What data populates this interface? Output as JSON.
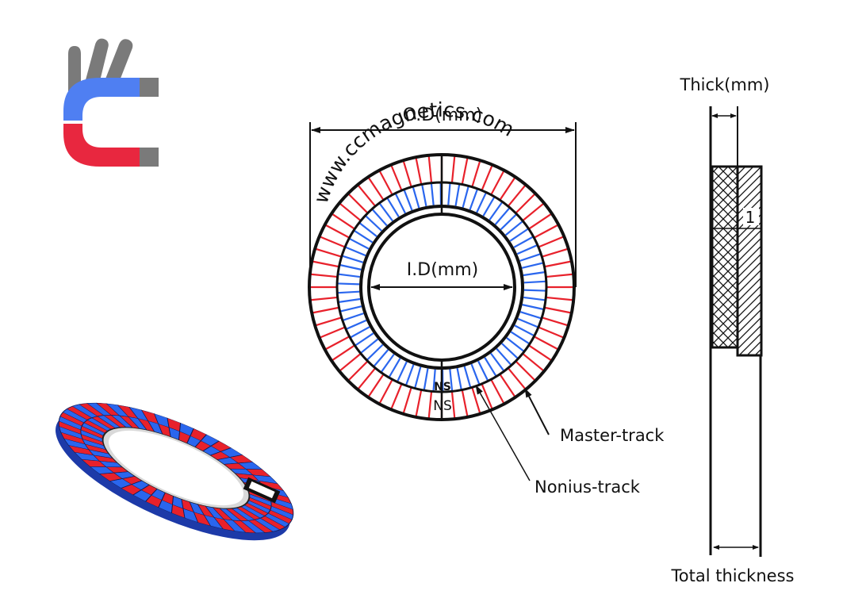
{
  "logo": {
    "name": "ccmagnetics-logo",
    "colors": {
      "blue": "#4f7ff2",
      "red": "#e8273f",
      "gray": "#7a7a7a"
    }
  },
  "ring": {
    "watermark": "www.ccmagnetics.com",
    "od_label": "O.D(mm)",
    "id_label": "I.D(mm)",
    "pole_label_inner": "NS",
    "pole_label_outer": "NS",
    "colors": {
      "master": "#e8212b",
      "nonius": "#2a66ee",
      "outline": "#111111"
    }
  },
  "callouts": {
    "master": "Master-track",
    "nonius": "Nonius-track"
  },
  "section": {
    "thick_label": "Thick(mm)",
    "total_label": "Total thickness",
    "layer_number": "1"
  },
  "colors": {
    "red": "#e8212b",
    "blue": "#2a66ee",
    "ink": "#111111"
  }
}
